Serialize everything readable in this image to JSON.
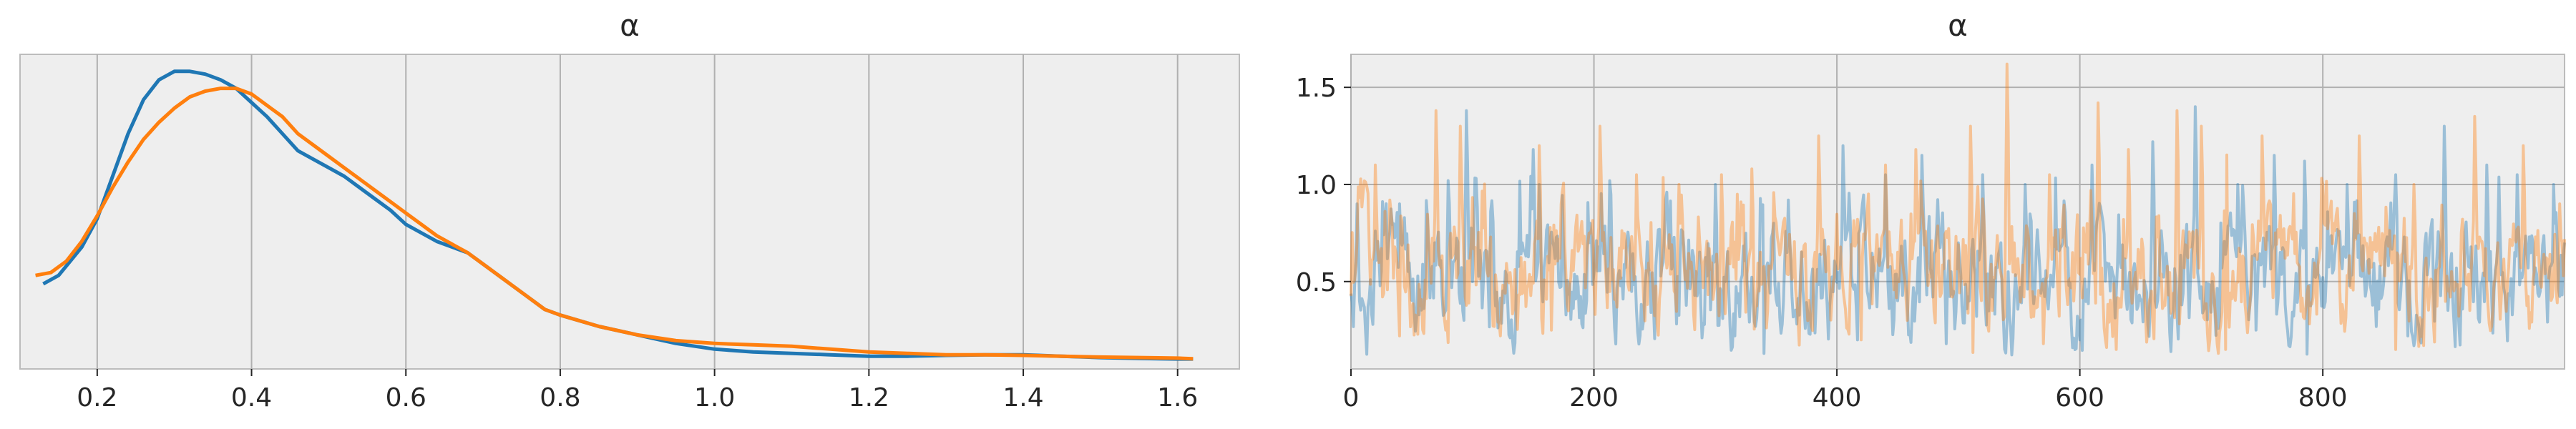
{
  "chart_data": [
    {
      "type": "line",
      "subtype": "kde",
      "title": "α",
      "xlabel": "",
      "ylabel": "",
      "xlim": [
        0.1,
        1.68
      ],
      "xticks": [
        0.2,
        0.4,
        0.6,
        0.8,
        1.0,
        1.2,
        1.4,
        1.6
      ],
      "xtick_labels": [
        "0.2",
        "0.4",
        "0.6",
        "0.8",
        "1.0",
        "1.2",
        "1.4",
        "1.6"
      ],
      "ylim": [
        -0.03,
        1.08
      ],
      "yticks_visible": false,
      "grid": true,
      "series": [
        {
          "color": "#1f77b4",
          "x": [
            0.13,
            0.15,
            0.18,
            0.2,
            0.22,
            0.24,
            0.26,
            0.28,
            0.3,
            0.32,
            0.34,
            0.36,
            0.38,
            0.4,
            0.42,
            0.44,
            0.46,
            0.48,
            0.5,
            0.52,
            0.54,
            0.56,
            0.58,
            0.6,
            0.62,
            0.64,
            0.66,
            0.68,
            0.7,
            0.72,
            0.74,
            0.76,
            0.78,
            0.8,
            0.85,
            0.9,
            0.95,
            1.0,
            1.05,
            1.1,
            1.15,
            1.2,
            1.25,
            1.3,
            1.35,
            1.4,
            1.45,
            1.5,
            1.55,
            1.6,
            1.62
          ],
          "y": [
            0.27,
            0.3,
            0.4,
            0.5,
            0.65,
            0.8,
            0.92,
            0.99,
            1.02,
            1.02,
            1.01,
            0.99,
            0.96,
            0.91,
            0.86,
            0.8,
            0.74,
            0.71,
            0.68,
            0.65,
            0.61,
            0.57,
            0.53,
            0.48,
            0.45,
            0.42,
            0.4,
            0.38,
            0.34,
            0.3,
            0.26,
            0.22,
            0.18,
            0.16,
            0.12,
            0.09,
            0.06,
            0.04,
            0.03,
            0.025,
            0.02,
            0.015,
            0.015,
            0.018,
            0.02,
            0.02,
            0.015,
            0.01,
            0.007,
            0.005,
            0.005
          ]
        },
        {
          "color": "#ff7f0e",
          "x": [
            0.12,
            0.14,
            0.16,
            0.18,
            0.2,
            0.22,
            0.24,
            0.26,
            0.28,
            0.3,
            0.32,
            0.34,
            0.36,
            0.38,
            0.4,
            0.42,
            0.44,
            0.46,
            0.48,
            0.5,
            0.52,
            0.54,
            0.56,
            0.58,
            0.6,
            0.62,
            0.64,
            0.66,
            0.68,
            0.7,
            0.72,
            0.74,
            0.76,
            0.78,
            0.8,
            0.85,
            0.9,
            0.95,
            1.0,
            1.05,
            1.1,
            1.15,
            1.2,
            1.25,
            1.3,
            1.35,
            1.4,
            1.45,
            1.5,
            1.55,
            1.6,
            1.62
          ],
          "y": [
            0.3,
            0.31,
            0.35,
            0.42,
            0.51,
            0.61,
            0.7,
            0.78,
            0.84,
            0.89,
            0.93,
            0.95,
            0.96,
            0.96,
            0.94,
            0.9,
            0.86,
            0.8,
            0.76,
            0.72,
            0.68,
            0.64,
            0.6,
            0.56,
            0.52,
            0.48,
            0.44,
            0.41,
            0.38,
            0.34,
            0.3,
            0.26,
            0.22,
            0.18,
            0.16,
            0.12,
            0.09,
            0.07,
            0.06,
            0.055,
            0.05,
            0.04,
            0.03,
            0.025,
            0.02,
            0.02,
            0.018,
            0.015,
            0.012,
            0.01,
            0.008,
            0.006
          ]
        }
      ]
    },
    {
      "type": "line",
      "subtype": "trace",
      "title": "α",
      "xlabel": "",
      "ylabel": "",
      "xlim": [
        0,
        999
      ],
      "xticks": [
        0,
        200,
        400,
        600,
        800
      ],
      "xtick_labels": [
        "0",
        "200",
        "400",
        "600",
        "800"
      ],
      "ylim": [
        0.05,
        1.67
      ],
      "yticks": [
        0.5,
        1.0,
        1.5
      ],
      "ytick_labels": [
        "0.5",
        "1.0",
        "1.5"
      ],
      "grid": true,
      "series": [
        {
          "color": "#1f77b4",
          "alpha": 0.4,
          "n": 1000,
          "base": 0.45,
          "spikes": [
            [
              5,
              0.9
            ],
            [
              40,
              0.9
            ],
            [
              95,
              1.38
            ],
            [
              150,
              1.18
            ],
            [
              155,
              1.0
            ],
            [
              260,
              0.96
            ],
            [
              300,
              1.0
            ],
            [
              360,
              0.92
            ],
            [
              405,
              1.2
            ],
            [
              440,
              1.05
            ],
            [
              470,
              1.15
            ],
            [
              520,
              1.05
            ],
            [
              555,
              1.0
            ],
            [
              610,
              1.1
            ],
            [
              660,
              1.22
            ],
            [
              695,
              1.4
            ],
            [
              730,
              1.0
            ],
            [
              760,
              1.15
            ],
            [
              785,
              1.12
            ],
            [
              820,
              1.0
            ],
            [
              860,
              1.05
            ],
            [
              900,
              1.3
            ],
            [
              935,
              1.1
            ],
            [
              960,
              1.05
            ],
            [
              990,
              1.0
            ]
          ],
          "dips": [
            [
              340,
              0.13
            ],
            [
              490,
              0.18
            ],
            [
              600,
              0.2
            ],
            [
              745,
              0.25
            ],
            [
              870,
              0.22
            ]
          ]
        },
        {
          "color": "#ff7f0e",
          "alpha": 0.4,
          "n": 1000,
          "base": 0.5,
          "spikes": [
            [
              20,
              1.1
            ],
            [
              70,
              1.38
            ],
            [
              90,
              1.3
            ],
            [
              155,
              1.2
            ],
            [
              205,
              1.3
            ],
            [
              235,
              1.05
            ],
            [
              270,
              1.0
            ],
            [
              305,
              1.05
            ],
            [
              330,
              1.08
            ],
            [
              385,
              1.25
            ],
            [
              440,
              1.1
            ],
            [
              465,
              1.18
            ],
            [
              510,
              1.3
            ],
            [
              540,
              1.62
            ],
            [
              575,
              1.05
            ],
            [
              615,
              1.42
            ],
            [
              640,
              1.18
            ],
            [
              680,
              1.38
            ],
            [
              700,
              1.3
            ],
            [
              720,
              1.44
            ],
            [
              750,
              1.25
            ],
            [
              800,
              1.0
            ],
            [
              830,
              1.25
            ],
            [
              875,
              1.0
            ],
            [
              925,
              1.35
            ],
            [
              965,
              1.2
            ],
            [
              995,
              0.9
            ]
          ],
          "dips": [
            [
              40,
              0.22
            ],
            [
              165,
              0.25
            ],
            [
              420,
              0.2
            ],
            [
              570,
              0.18
            ],
            [
              630,
              0.15
            ],
            [
              720,
              0.15
            ],
            [
              860,
              0.15
            ]
          ]
        }
      ]
    }
  ]
}
